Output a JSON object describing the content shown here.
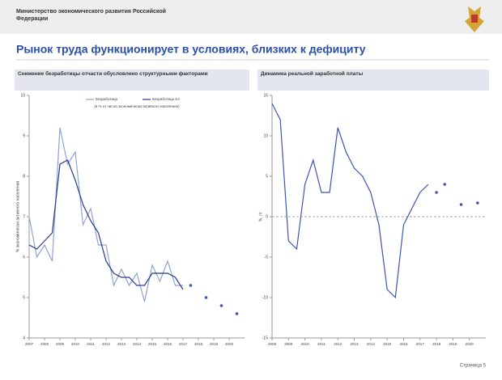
{
  "header": {
    "ministry": "Министерство экономического развития Российской Федерации",
    "title": "Рынок труда функционирует в условиях, близких к дефициту",
    "page": "Страница 5"
  },
  "chart_data": [
    {
      "type": "line",
      "title": "Снижение безработицы отчасти обусловлено структурными факторами",
      "ylabel": "% экономически активного населения",
      "note": "(в % от числа экономически активного населения)",
      "x": [
        2007,
        2007.5,
        2008,
        2008.5,
        2009,
        2009.5,
        2010,
        2010.5,
        2011,
        2011.5,
        2012,
        2012.5,
        2013,
        2013.5,
        2014,
        2014.5,
        2015,
        2015.5,
        2016,
        2016.5,
        2017,
        2017.5,
        2018,
        2018.5,
        2019,
        2019.5,
        2020,
        2020.5
      ],
      "xlim": [
        2007,
        2021
      ],
      "xticks": [
        2007,
        2008,
        2009,
        2010,
        2011,
        2012,
        2013,
        2014,
        2015,
        2016,
        2017,
        2018,
        2019,
        2020
      ],
      "ylim": [
        4,
        10
      ],
      "yticks": [
        4,
        5,
        6,
        7,
        8,
        9,
        10
      ],
      "series": [
        {
          "name": "Безработица",
          "color": "#8fa3d8",
          "values": [
            7.0,
            6.0,
            6.3,
            5.9,
            9.2,
            8.3,
            8.6,
            6.8,
            7.2,
            6.3,
            6.3,
            5.3,
            5.7,
            5.3,
            5.6,
            4.9,
            5.8,
            5.4,
            5.9,
            5.3,
            5.3,
            null,
            null,
            null,
            null,
            null,
            null,
            null
          ]
        },
        {
          "name": "Безработица SA",
          "color": "#2b3a8c",
          "values": [
            6.3,
            6.2,
            6.4,
            6.6,
            8.3,
            8.4,
            7.9,
            7.3,
            6.9,
            6.6,
            5.9,
            5.6,
            5.5,
            5.5,
            5.3,
            5.3,
            5.6,
            5.6,
            5.6,
            5.5,
            5.2,
            null,
            null,
            null,
            null,
            null,
            null,
            null
          ]
        },
        {
          "color": "#3b55b0",
          "style": "dots",
          "values": [
            null,
            null,
            null,
            null,
            null,
            null,
            null,
            null,
            null,
            null,
            null,
            null,
            null,
            null,
            null,
            null,
            null,
            null,
            null,
            null,
            null,
            5.3,
            null,
            5.0,
            null,
            4.8,
            null,
            4.6
          ]
        }
      ]
    },
    {
      "type": "line",
      "title": "Динамика реальной заработной платы",
      "ylabel": "%, г/г",
      "zero_line": true,
      "x": [
        2008,
        2008.5,
        2009,
        2009.5,
        2010,
        2010.5,
        2011,
        2011.5,
        2012,
        2012.5,
        2013,
        2013.5,
        2014,
        2014.5,
        2015,
        2015.5,
        2016,
        2016.5,
        2017,
        2017.5,
        2018,
        2018.5,
        2019,
        2019.5,
        2020,
        2020.5
      ],
      "xlim": [
        2008,
        2021
      ],
      "xticks": [
        2008,
        2009,
        2010,
        2011,
        2012,
        2013,
        2014,
        2015,
        2016,
        2017,
        2018,
        2019,
        2020
      ],
      "ylim": [
        -15,
        15
      ],
      "yticks": [
        -15,
        -10,
        -5,
        0,
        5,
        10,
        15
      ],
      "series": [
        {
          "color": "#3b55b0",
          "values": [
            14,
            12,
            -3,
            -4,
            4,
            7,
            3,
            3,
            11,
            8,
            6,
            5,
            3,
            -1,
            -9,
            -10,
            -1,
            1,
            3,
            4,
            null,
            null,
            null,
            null,
            null,
            null
          ]
        },
        {
          "color": "#3b55b0",
          "style": "dots",
          "values": [
            null,
            null,
            null,
            null,
            null,
            null,
            null,
            null,
            null,
            null,
            null,
            null,
            null,
            null,
            null,
            null,
            null,
            null,
            null,
            null,
            3,
            4,
            null,
            1.5,
            null,
            1.7
          ]
        }
      ]
    }
  ]
}
